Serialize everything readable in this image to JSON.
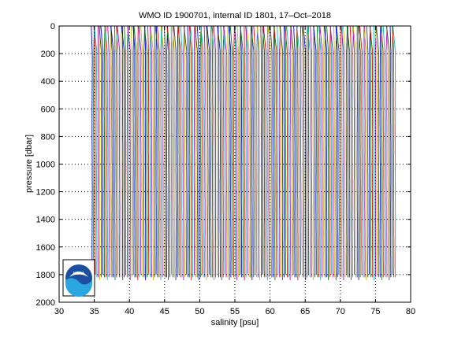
{
  "chart_data": {
    "type": "line",
    "title": "WMO ID 1900701, internal ID 1801, 17–Oct–2018",
    "xlabel": "salinity [psu]",
    "ylabel": "pressure [dbar]",
    "xlim": [
      30,
      80
    ],
    "ylim": [
      2000,
      0
    ],
    "y_reversed": true,
    "xticks": [
      "30",
      "35",
      "40",
      "45",
      "50",
      "55",
      "60",
      "65",
      "70",
      "75",
      "80"
    ],
    "yticks": [
      "0",
      "200",
      "400",
      "600",
      "800",
      "1000",
      "1200",
      "1400",
      "1600",
      "1800",
      "2000"
    ],
    "grid": true,
    "grid_style": "dotted",
    "legend": "none",
    "series_colors": [
      "#0000ff",
      "#008000",
      "#ff0000",
      "#00bfbf",
      "#bf00bf",
      "#bfbf00",
      "#404040"
    ],
    "profiles": {
      "count": 200,
      "first_offset_psu": 34.7,
      "offset_step_psu": 0.2167,
      "surface_salinity_psu": 34.55,
      "deep_salinity_psu": 34.68,
      "halocline_depth_dbar": 180,
      "max_pressure_dbar": 1840
    },
    "logo": "noaa-logo"
  }
}
